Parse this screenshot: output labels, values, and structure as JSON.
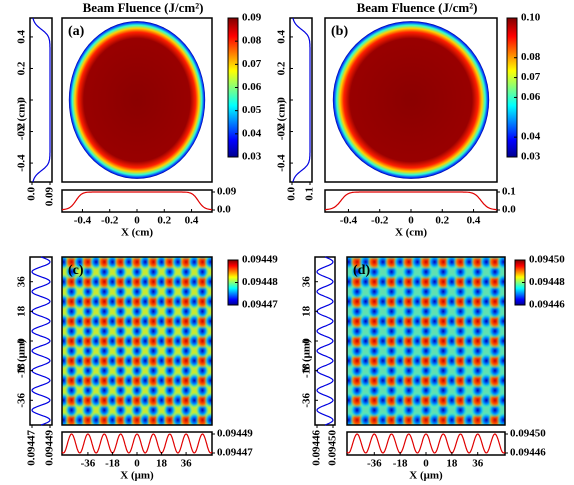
{
  "chart_data": [
    {
      "type": "heatmap",
      "title": "Beam Fluence (J/cm²)",
      "label": "(a)",
      "xlabel": "X (cm)",
      "ylabel": "Y (cm)",
      "xlim": [
        -0.55,
        0.55
      ],
      "xticks": [
        -0.4,
        -0.2,
        0,
        0.2,
        0.4
      ],
      "ylim": [
        -0.52,
        0.52
      ],
      "yticks": [
        -0.4,
        -0.2,
        0,
        0.2,
        0.4
      ],
      "clim": [
        0.03,
        0.09
      ],
      "cticks": [
        0.03,
        0.04,
        0.05,
        0.06,
        0.07,
        0.08,
        0.09
      ],
      "profile_lim": [
        0,
        0.09
      ],
      "profile_ticks": [
        {
          "value": 0,
          "label": "0.0"
        },
        0.09
      ]
    },
    {
      "type": "heatmap",
      "title": "Beam Fluence (J/cm²)",
      "label": "(b)",
      "xlabel": "X (cm)",
      "ylabel": "Y (cm)",
      "xlim": [
        -0.55,
        0.55
      ],
      "xticks": [
        -0.4,
        -0.2,
        0,
        0.2,
        0.4
      ],
      "ylim": [
        -0.52,
        0.52
      ],
      "yticks": [
        -0.4,
        -0.2,
        0,
        0.2,
        0.4
      ],
      "clim": [
        0.03,
        0.1
      ],
      "cticks": [
        0.03,
        0.04,
        0.06,
        0.07,
        0.08,
        {
          "value": 0.1,
          "label": "0.10"
        }
      ],
      "profile_lim": [
        0,
        0.1
      ],
      "profile_ticks": [
        {
          "value": 0,
          "label": "0.0"
        },
        0.1
      ]
    },
    {
      "type": "heatmap",
      "label": "(c)",
      "xlabel": "X (μm)",
      "ylabel": "Y (μm)",
      "xlim": [
        -55,
        55
      ],
      "xticks": [
        -36,
        -18,
        0,
        18,
        36
      ],
      "ylim": [
        -51,
        51
      ],
      "yticks": [
        -36,
        -18,
        0,
        18,
        36
      ],
      "clim": [
        0.09447,
        0.09449
      ],
      "cticks": [
        0.09447,
        0.09448,
        0.09449
      ],
      "profile_lim": [
        0.09447,
        0.09449
      ],
      "profile_ticks": [
        0.09447,
        0.09449
      ]
    },
    {
      "type": "heatmap",
      "label": "(d)",
      "xlabel": "X (μm)",
      "ylabel": "Y (μm)",
      "xlim": [
        -55,
        55
      ],
      "xticks": [
        -36,
        -18,
        0,
        18,
        36
      ],
      "ylim": [
        -51,
        51
      ],
      "yticks": [
        -36,
        -18,
        0,
        18,
        36
      ],
      "clim": [
        0.09446,
        0.0945
      ],
      "cticks": [
        0.09446,
        0.09448,
        {
          "value": 0.0945,
          "label": "0.09450"
        }
      ],
      "profile_lim": [
        0.09446,
        0.0945
      ],
      "profile_ticks": [
        0.09446,
        {
          "value": 0.0945,
          "label": "0.09450"
        }
      ]
    }
  ]
}
